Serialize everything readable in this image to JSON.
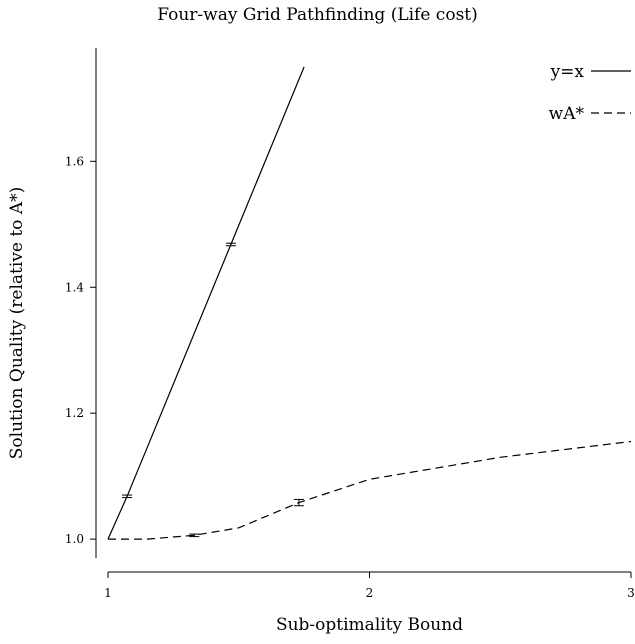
{
  "chart_data": {
    "type": "line",
    "title": "Four-way Grid Pathfinding (Life cost)",
    "xlabel": "Sub-optimality Bound",
    "ylabel": "Solution Quality (relative to A*)",
    "xlim": [
      1,
      3
    ],
    "ylim": [
      0.97,
      1.78
    ],
    "xticks": [
      1,
      2,
      3
    ],
    "xtick_labels": [
      "1",
      "2",
      "3"
    ],
    "yticks": [
      1.0,
      1.2,
      1.4,
      1.6
    ],
    "ytick_labels": [
      "1.0",
      "1.2",
      "1.4",
      "1.6"
    ],
    "legend_position": "top-right",
    "grid": false,
    "series": [
      {
        "name": "y=x",
        "line_style": "solid",
        "x": [
          1.0,
          1.073,
          1.47,
          1.75
        ],
        "y": [
          1.0,
          1.068,
          1.468,
          1.75
        ],
        "error_bars": [
          {
            "x": 1.073,
            "y": 1.068,
            "err": 0.002
          },
          {
            "x": 1.47,
            "y": 1.468,
            "err": 0.002
          }
        ]
      },
      {
        "name": "wA*",
        "line_style": "dashed",
        "x": [
          1.0,
          1.15,
          1.33,
          1.5,
          1.73,
          2.0,
          2.5,
          3.0
        ],
        "y": [
          1.0,
          1.0,
          1.006,
          1.018,
          1.058,
          1.095,
          1.13,
          1.155
        ],
        "error_bars": [
          {
            "x": 1.33,
            "y": 1.006,
            "err": 0.002
          },
          {
            "x": 1.73,
            "y": 1.058,
            "err": 0.005
          }
        ]
      }
    ]
  }
}
